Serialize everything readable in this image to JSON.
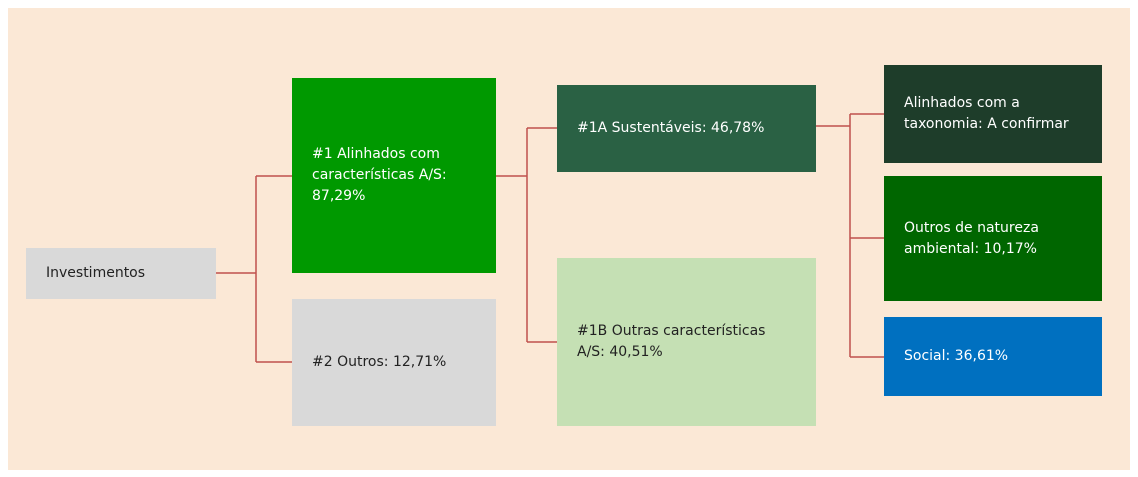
{
  "nodes": [
    {
      "lines": [
        "Investimentos"
      ]
    },
    {
      "lines": [
        "#1 Alinhados com",
        "características A/S:",
        "87,29%"
      ]
    },
    {
      "lines": [
        "#2 Outros: 12,71%"
      ]
    },
    {
      "lines": [
        "#1A Sustentáveis: 46,78%"
      ]
    },
    {
      "lines": [
        "#1B Outras características",
        "A/S: 40,51%"
      ]
    },
    {
      "lines": [
        "Alinhados com a",
        "taxonomia: A confirmar"
      ]
    },
    {
      "lines": [
        "Outros de natureza",
        "ambiental: 10,17%"
      ]
    },
    {
      "lines": [
        "Social: 36,61%"
      ]
    }
  ]
}
